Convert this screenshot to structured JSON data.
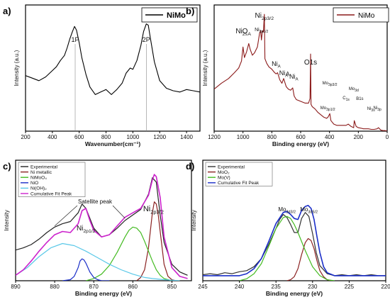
{
  "chart_data": [
    {
      "panel": "a)",
      "type": "line",
      "xlabel": "Wavenumber(cm⁻¹)",
      "ylabel": "Intensity (a.u.)",
      "xlim": [
        200,
        1500
      ],
      "xticks": [
        200,
        400,
        600,
        800,
        1000,
        1200,
        1400
      ],
      "series": [
        {
          "name": "NiMo",
          "color": "#000000",
          "x": [
            200,
            250,
            300,
            350,
            400,
            430,
            460,
            490,
            510,
            530,
            550,
            565,
            580,
            600,
            620,
            650,
            680,
            720,
            760,
            800,
            840,
            880,
            920,
            950,
            980,
            1000,
            1030,
            1060,
            1080,
            1100,
            1115,
            1130,
            1160,
            1200,
            1250,
            1300,
            1350,
            1400,
            1450,
            1500
          ],
          "y": [
            0.44,
            0.42,
            0.4,
            0.43,
            0.48,
            0.51,
            0.56,
            0.6,
            0.66,
            0.73,
            0.79,
            0.83,
            0.8,
            0.7,
            0.58,
            0.45,
            0.35,
            0.29,
            0.31,
            0.33,
            0.29,
            0.33,
            0.38,
            0.46,
            0.5,
            0.49,
            0.56,
            0.68,
            0.79,
            0.85,
            0.84,
            0.74,
            0.55,
            0.4,
            0.34,
            0.32,
            0.31,
            0.33,
            0.32,
            0.31
          ]
        }
      ],
      "annotations": [
        {
          "text": "1P",
          "x": 570
        },
        {
          "text": "2P",
          "x": 1100
        }
      ]
    },
    {
      "panel": "b)",
      "type": "line",
      "xlabel": "Binding energy (eV)",
      "ylabel": "Intensity (a.u.)",
      "xlim": [
        1200,
        0
      ],
      "xticks": [
        1200,
        1000,
        800,
        600,
        400,
        200,
        0
      ],
      "series": [
        {
          "name": "NiMo",
          "color": "#8b1a1a",
          "x": [
            1200,
            1150,
            1100,
            1060,
            1030,
            1010,
            1000,
            990,
            975,
            960,
            950,
            935,
            920,
            900,
            885,
            878,
            872,
            865,
            858,
            852,
            848,
            835,
            820,
            800,
            780,
            770,
            760,
            745,
            730,
            718,
            700,
            685,
            670,
            655,
            645,
            630,
            610,
            590,
            570,
            545,
            535,
            531,
            528,
            520,
            500,
            480,
            460,
            440,
            420,
            410,
            398,
            390,
            370,
            350,
            320,
            300,
            285,
            270,
            250,
            232,
            228,
            215,
            200,
            180,
            165,
            150,
            130,
            110,
            90,
            70,
            60,
            45,
            30,
            15,
            0
          ],
          "y": [
            0.36,
            0.41,
            0.45,
            0.5,
            0.54,
            0.6,
            0.72,
            0.63,
            0.68,
            0.75,
            0.7,
            0.65,
            0.67,
            0.72,
            0.84,
            0.86,
            0.78,
            0.86,
            0.85,
            1.0,
            0.62,
            0.58,
            0.55,
            0.53,
            0.5,
            0.49,
            0.5,
            0.44,
            0.41,
            0.45,
            0.38,
            0.36,
            0.35,
            0.37,
            0.3,
            0.27,
            0.26,
            0.25,
            0.24,
            0.24,
            0.28,
            0.66,
            0.23,
            0.21,
            0.19,
            0.16,
            0.14,
            0.12,
            0.11,
            0.12,
            0.15,
            0.09,
            0.06,
            0.05,
            0.05,
            0.05,
            0.05,
            0.06,
            0.04,
            0.03,
            0.09,
            0.04,
            0.03,
            0.025,
            0.02,
            0.02,
            0.02,
            0.015,
            0.015,
            0.02,
            0.03,
            0.01,
            0.005,
            0.005,
            0.0
          ]
        }
      ],
      "annotations": [
        {
          "text": "Ni",
          "sub": "2p3/2",
          "x": 852,
          "color": "#2e8b1a"
        },
        {
          "text": "Ni",
          "sub": "2p1/2",
          "x": 872,
          "color": "#2e8b1a"
        },
        {
          "text": "Ni",
          "sub": "2s",
          "x": 1010,
          "color": "#2e8b1a"
        },
        {
          "text": "O",
          "sub": "A",
          "x": 975,
          "color": "#1a4fa0"
        },
        {
          "text": "O1s",
          "x": 531,
          "color": "#1a3fa0"
        },
        {
          "text": "Ni",
          "sub": "A",
          "x": 770,
          "color": "#2e8b1a"
        },
        {
          "text": "Ni",
          "sub": "A",
          "x": 718,
          "color": "#2e8b1a"
        },
        {
          "text": "A",
          "x": 690,
          "color": "#2e8b1a"
        },
        {
          "text": "Ni",
          "sub": "A",
          "x": 648,
          "color": "#2e8b1a"
        },
        {
          "text": "Mo",
          "sub": "3p3/2",
          "x": 398,
          "color": "#111111"
        },
        {
          "text": "Mo",
          "sub": "3p1/2",
          "x": 412,
          "color": "#111111"
        },
        {
          "text": "Mo",
          "sub": "3d",
          "x": 232,
          "color": "#111111"
        },
        {
          "text": "C",
          "sub": "1s",
          "x": 285,
          "color": "#c8a200"
        },
        {
          "text": "B1s",
          "x": 190,
          "color": "#111111"
        },
        {
          "text": "Ni",
          "sub": "3p",
          "x": 68,
          "color": "#2e8b1a"
        },
        {
          "text": "Ni",
          "sub": "3s",
          "x": 112,
          "color": "#2e8b1a"
        }
      ]
    },
    {
      "panel": "c)",
      "type": "line",
      "xlabel": "Binding energy (eV)",
      "ylabel": "Intensity",
      "xlim": [
        890,
        845
      ],
      "xticks": [
        890,
        880,
        870,
        860,
        850
      ],
      "series": [
        {
          "name": "Experimental",
          "color": "#222222",
          "x": [
            890,
            888,
            886,
            884,
            882,
            880,
            878,
            876,
            874,
            873,
            872,
            870,
            868,
            866,
            864,
            862,
            860,
            858,
            856,
            855,
            854,
            853,
            852,
            850,
            848,
            846
          ],
          "y": [
            0.28,
            0.3,
            0.33,
            0.38,
            0.44,
            0.49,
            0.52,
            0.54,
            0.62,
            0.7,
            0.66,
            0.48,
            0.4,
            0.42,
            0.48,
            0.55,
            0.6,
            0.65,
            0.79,
            0.94,
            0.9,
            0.6,
            0.35,
            0.15,
            0.08,
            0.05
          ]
        },
        {
          "name": "Ni metallic",
          "color": "#8b2222",
          "x": [
            859,
            858,
            857,
            856,
            855,
            854.5,
            854,
            853.5,
            853,
            852,
            851,
            850,
            849
          ],
          "y": [
            0.0,
            0.03,
            0.1,
            0.3,
            0.62,
            0.72,
            0.7,
            0.6,
            0.45,
            0.15,
            0.04,
            0.01,
            0.0
          ]
        },
        {
          "name": "NiMoO₄",
          "color": "#44bb22",
          "x": [
            872,
            870,
            868,
            866,
            864,
            862,
            861,
            860,
            859,
            858,
            857,
            856,
            855,
            854,
            853,
            852,
            850
          ],
          "y": [
            0.0,
            0.02,
            0.06,
            0.14,
            0.26,
            0.4,
            0.46,
            0.49,
            0.48,
            0.44,
            0.36,
            0.27,
            0.18,
            0.1,
            0.05,
            0.02,
            0.0
          ]
        },
        {
          "name": "NiO",
          "color": "#1a2ec8",
          "x": [
            878,
            876,
            875,
            874,
            873.5,
            873,
            872.5,
            872,
            871,
            870,
            869,
            868,
            866
          ],
          "y": [
            0.0,
            0.01,
            0.04,
            0.12,
            0.18,
            0.2,
            0.19,
            0.16,
            0.08,
            0.03,
            0.01,
            0.0,
            0.0
          ]
        },
        {
          "name": "Ni(OH)₂",
          "color": "#5ac8e8",
          "x": [
            890,
            887,
            884,
            881,
            878,
            875,
            872,
            869,
            866,
            863,
            860,
            857,
            855,
            852,
            848
          ],
          "y": [
            0.05,
            0.12,
            0.22,
            0.3,
            0.34,
            0.32,
            0.27,
            0.21,
            0.15,
            0.1,
            0.06,
            0.03,
            0.02,
            0.01,
            0.0
          ]
        },
        {
          "name": "Cumulative Fit Peak",
          "color": "#cc22cc",
          "x": [
            890,
            888,
            886,
            884,
            882,
            880,
            878,
            876,
            874,
            873,
            872,
            871,
            870,
            868,
            866,
            864,
            862,
            860,
            858,
            856,
            855,
            854.5,
            854,
            853,
            852,
            850,
            848,
            846
          ],
          "y": [
            0.05,
            0.1,
            0.18,
            0.27,
            0.35,
            0.42,
            0.45,
            0.44,
            0.52,
            0.64,
            0.66,
            0.55,
            0.46,
            0.4,
            0.42,
            0.5,
            0.58,
            0.62,
            0.66,
            0.78,
            0.92,
            0.97,
            0.95,
            0.76,
            0.4,
            0.12,
            0.04,
            0.02
          ]
        }
      ],
      "legend": "top-left",
      "annotations": [
        {
          "text": "Satellite peak",
          "x": 871
        },
        {
          "text": "Ni",
          "sub": "2p1/2",
          "x": 872,
          "color": "#2e8b1a"
        },
        {
          "text": "Ni",
          "sub": "2p3/2",
          "x": 854,
          "color": "#2e8b1a"
        }
      ]
    },
    {
      "panel": "d)",
      "type": "line",
      "xlabel": "Binding energy (eV)",
      "ylabel": "Intensity",
      "xlim": [
        245,
        220
      ],
      "xticks": [
        245,
        240,
        235,
        230,
        225,
        220
      ],
      "series": [
        {
          "name": "Experimental",
          "color": "#333333",
          "x": [
            245,
            244,
            243,
            242,
            241,
            240,
            239,
            238,
            237,
            236,
            235,
            234.5,
            234,
            233.5,
            233,
            232.5,
            232,
            231.5,
            231,
            230.5,
            230,
            229.5,
            229,
            228,
            227,
            226,
            225,
            224,
            223,
            222,
            221,
            220
          ],
          "y": [
            0.06,
            0.07,
            0.06,
            0.08,
            0.07,
            0.09,
            0.1,
            0.14,
            0.22,
            0.36,
            0.52,
            0.61,
            0.66,
            0.63,
            0.56,
            0.48,
            0.48,
            0.62,
            0.68,
            0.64,
            0.47,
            0.28,
            0.15,
            0.07,
            0.05,
            0.06,
            0.05,
            0.06,
            0.05,
            0.06,
            0.05,
            0.05
          ]
        },
        {
          "name": "MoO₂",
          "color": "#8b2222",
          "x": [
            233.5,
            233,
            232.5,
            232,
            231.5,
            231,
            230.6,
            230.2,
            229.8,
            229.4,
            229,
            228.5,
            228,
            227.5
          ],
          "y": [
            0.0,
            0.01,
            0.04,
            0.12,
            0.26,
            0.38,
            0.42,
            0.4,
            0.32,
            0.2,
            0.1,
            0.04,
            0.01,
            0.0
          ]
        },
        {
          "name": "Mo(V)",
          "color": "#44bb22",
          "x": [
            240,
            239,
            238,
            237,
            236,
            235,
            234,
            233.5,
            233,
            232.5,
            232,
            231,
            230,
            229,
            228,
            227
          ],
          "y": [
            0.0,
            0.02,
            0.07,
            0.17,
            0.34,
            0.52,
            0.63,
            0.64,
            0.62,
            0.56,
            0.48,
            0.3,
            0.14,
            0.05,
            0.01,
            0.0
          ]
        },
        {
          "name": "Cumulative Fit Peak",
          "color": "#1a2ec8",
          "x": [
            245,
            242,
            240,
            239,
            238,
            237,
            236,
            235,
            234,
            233.5,
            233,
            232.5,
            232,
            231.5,
            231,
            230.6,
            230.2,
            229.8,
            229.4,
            229,
            228.5,
            228,
            227,
            225,
            222,
            220
          ],
          "y": [
            0.05,
            0.05,
            0.05,
            0.07,
            0.12,
            0.22,
            0.39,
            0.57,
            0.68,
            0.69,
            0.66,
            0.62,
            0.61,
            0.7,
            0.74,
            0.75,
            0.72,
            0.61,
            0.44,
            0.28,
            0.14,
            0.08,
            0.05,
            0.05,
            0.05,
            0.05
          ]
        }
      ],
      "legend": "top-left",
      "annotations": [
        {
          "text": "Mo",
          "sub": "3d3/2",
          "x": 233.5,
          "color": "#111111"
        },
        {
          "text": "Mo",
          "sub": "3d5/2",
          "x": 230.5,
          "color": "#111111"
        }
      ]
    }
  ]
}
